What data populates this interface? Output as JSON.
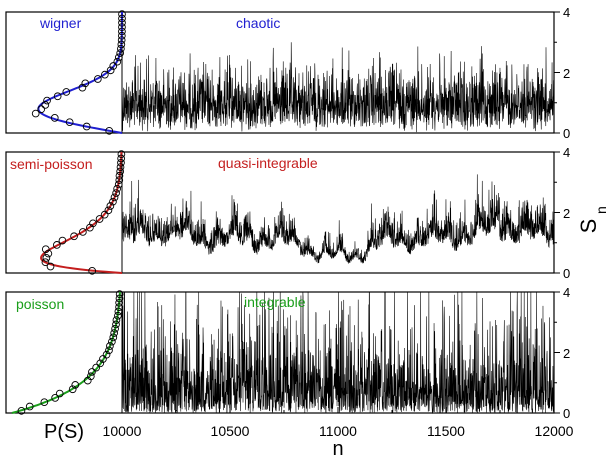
{
  "figure": {
    "x_axis_label": "n",
    "y_axis_label_main": "S",
    "y_axis_label_sub": "n",
    "dist_axis_label": "P(S)"
  },
  "chart_data": [
    {
      "type": "line",
      "panel": "top",
      "series_label": "chaotic",
      "label_color": "#1f1fd0",
      "xlim": [
        10000,
        12000
      ],
      "ylim": [
        0,
        4
      ],
      "x_ticks": [],
      "y_ticks": [
        "0",
        "2",
        "4"
      ],
      "character": "fluctuations concentrated between ~0.2 and ~2.5, occasional peaks near 3"
    },
    {
      "type": "line",
      "panel": "middle",
      "series_label": "quasi-integrable",
      "label_color": "#c41e1e",
      "xlim": [
        10000,
        12000
      ],
      "ylim": [
        0,
        4
      ],
      "x_ticks": [],
      "y_ticks": [
        "0",
        "2",
        "4"
      ],
      "character": "slowly varying envelope, dip near n≈11000, peaks near 3.3 around n≈11750"
    },
    {
      "type": "line",
      "panel": "bottom",
      "series_label": "integrable",
      "label_color": "#1a9e1a",
      "xlim": [
        10000,
        12000
      ],
      "ylim": [
        0,
        4
      ],
      "x_ticks": [
        "10000",
        "10500",
        "11000",
        "11500",
        "12000"
      ],
      "y_ticks": [
        "0",
        "2",
        "4"
      ],
      "character": "exponential-like spacings, many excursions clipped at 4"
    },
    {
      "type": "scatter",
      "panel": "dist-top",
      "series_label": "wigner",
      "label_color": "#1f1fd0",
      "orientation": "horizontal (density along x, S along y)",
      "s_range": [
        0,
        4
      ],
      "p_range": [
        0,
        1
      ]
    },
    {
      "type": "scatter",
      "panel": "dist-middle",
      "series_label": "semi-poisson",
      "label_color": "#c41e1e",
      "orientation": "horizontal (density along x, S along y)",
      "s_range": [
        0,
        4
      ],
      "p_range": [
        0,
        1
      ]
    },
    {
      "type": "scatter",
      "panel": "dist-bottom",
      "series_label": "poisson",
      "label_color": "#1a9e1a",
      "orientation": "horizontal (density along x, S along y)",
      "s_range": [
        0,
        4
      ],
      "p_range": [
        0,
        1
      ]
    }
  ]
}
